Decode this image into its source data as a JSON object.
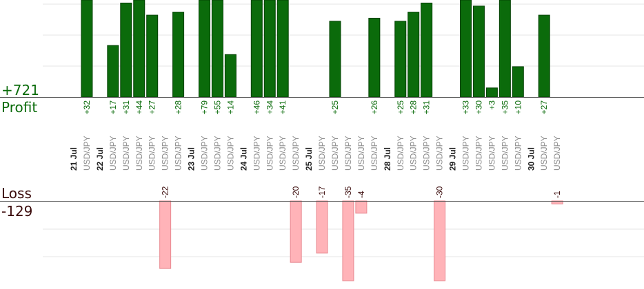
{
  "profit_summary": {
    "total": "+721",
    "label": "Profit",
    "color": "#0a6b0a"
  },
  "loss_summary": {
    "total": "-129",
    "label": "Loss",
    "color": "#3a0a0a"
  },
  "colors": {
    "profit_bar": "#0b6b0b",
    "profit_bar_edge": "#034003",
    "loss_bar": "#ffb3b8",
    "loss_bar_edge": "#e88890",
    "profit_label": "#0a6b0a",
    "loss_label": "#3a0a0a",
    "pair_label": "#8c8c8c",
    "grid": "#e6e6e6",
    "axis": "#555555"
  },
  "chart_data": {
    "type": "bar",
    "symbol": "USD/JPY",
    "profit_ylim": [
      0,
      32
    ],
    "loss_ylim": [
      0,
      26
    ],
    "slots": [
      {
        "date": "21 Jul"
      },
      {
        "pair": "USD/JPY",
        "profit": 32
      },
      {
        "date": "22 Jul"
      },
      {
        "pair": "USD/JPY",
        "profit": 17
      },
      {
        "pair": "USD/JPY",
        "profit": 31
      },
      {
        "pair": "USD/JPY",
        "profit": 44
      },
      {
        "pair": "USD/JPY",
        "profit": 27
      },
      {
        "pair": "USD/JPY",
        "loss": -22
      },
      {
        "pair": "USD/JPY",
        "profit": 28
      },
      {
        "date": "23 Jul"
      },
      {
        "pair": "USD/JPY",
        "profit": 79
      },
      {
        "pair": "USD/JPY",
        "profit": 55
      },
      {
        "pair": "USD/JPY",
        "profit": 14
      },
      {
        "date": "24 Jul"
      },
      {
        "pair": "USD/JPY",
        "profit": 46
      },
      {
        "pair": "USD/JPY",
        "profit": 34
      },
      {
        "pair": "USD/JPY",
        "profit": 41
      },
      {
        "pair": "USD/JPY",
        "loss": -20
      },
      {
        "date": "25 Jul"
      },
      {
        "pair": "USD/JPY",
        "loss": -17
      },
      {
        "pair": "USD/JPY",
        "profit": 25
      },
      {
        "pair": "USD/JPY",
        "loss": -35
      },
      {
        "pair": "USD/JPY",
        "loss": -4
      },
      {
        "pair": "USD/JPY",
        "profit": 26
      },
      {
        "date": "28 Jul"
      },
      {
        "pair": "USD/JPY",
        "profit": 25
      },
      {
        "pair": "USD/JPY",
        "profit": 28
      },
      {
        "pair": "USD/JPY",
        "profit": 31
      },
      {
        "pair": "USD/JPY",
        "loss": -30
      },
      {
        "date": "29 Jul"
      },
      {
        "pair": "USD/JPY",
        "profit": 33
      },
      {
        "pair": "USD/JPY",
        "profit": 30
      },
      {
        "pair": "USD/JPY",
        "profit": 3
      },
      {
        "pair": "USD/JPY",
        "profit": 35
      },
      {
        "pair": "USD/JPY",
        "profit": 10
      },
      {
        "date": "30 Jul"
      },
      {
        "pair": "USD/JPY",
        "profit": 27
      },
      {
        "pair": "USD/JPY",
        "loss": -1
      }
    ]
  }
}
